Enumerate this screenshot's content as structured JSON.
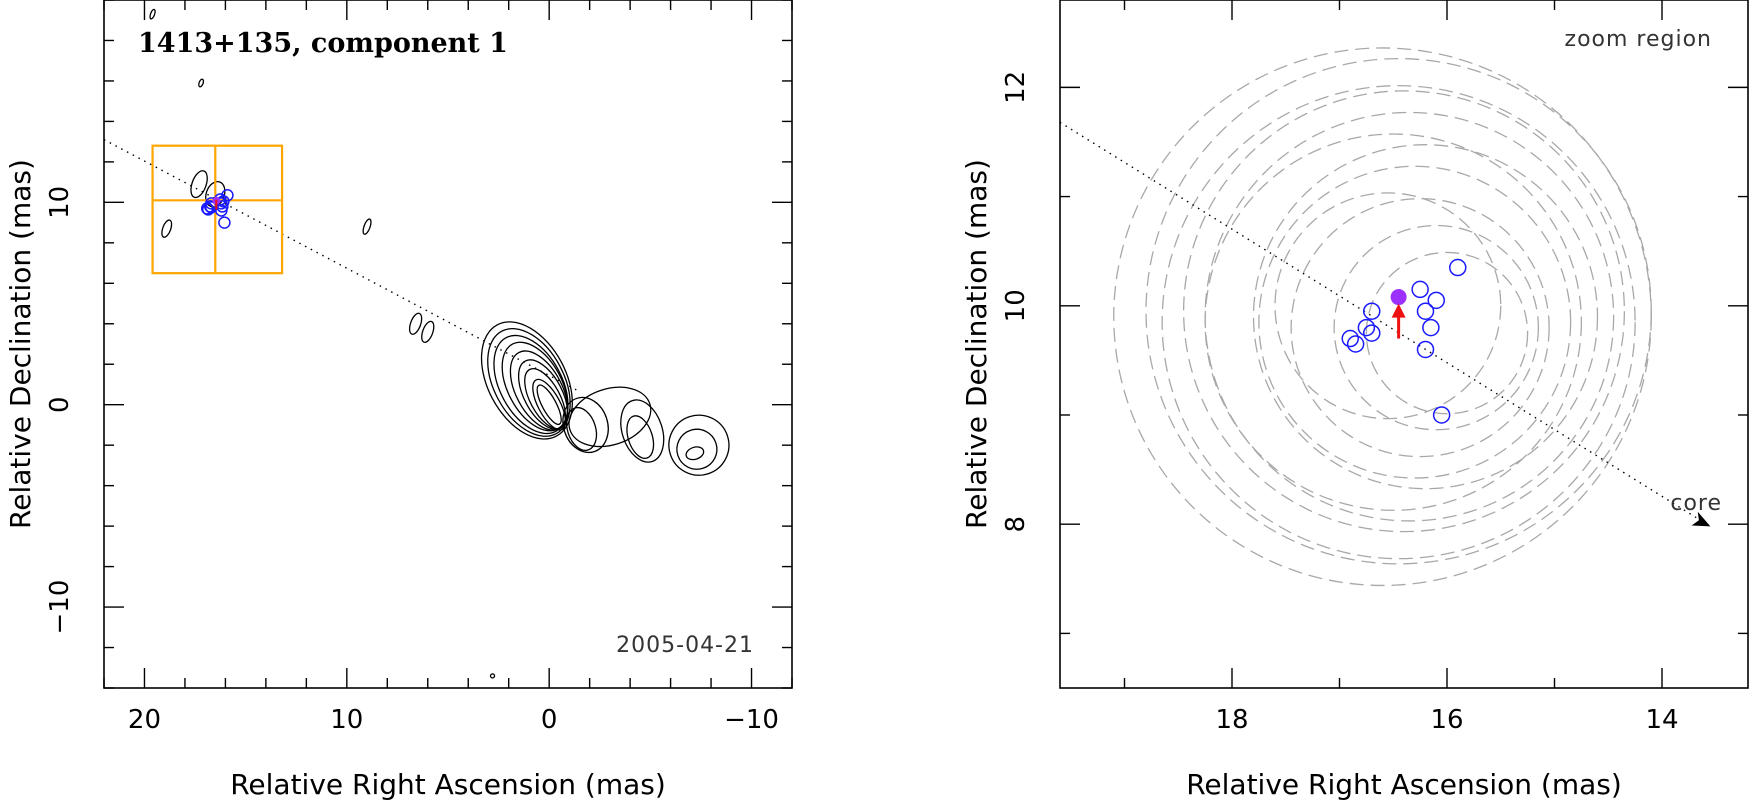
{
  "chart_data": [
    {
      "type": "scatter",
      "title": "1413+135, component 1",
      "annotation": "2005-04-21",
      "xlabel": "Relative Right Ascension (mas)",
      "ylabel": "Relative Declination (mas)",
      "xlim": [
        22,
        -12
      ],
      "ylim": [
        -14,
        20
      ],
      "xticks": [
        20,
        10,
        0,
        -10
      ],
      "xticklabels": [
        "20",
        "10",
        "0",
        "−10"
      ],
      "yticks": [
        -10,
        0,
        10
      ],
      "yticklabels": [
        "−10",
        "0",
        "10"
      ],
      "contour_map": true,
      "zoom_box": {
        "x": [
          13.2,
          19.6
        ],
        "y": [
          6.5,
          12.8
        ],
        "cross": [
          16.5,
          10.1
        ],
        "color": "#ffa500"
      },
      "component_positions": [
        [
          16.9,
          9.7
        ],
        [
          16.85,
          9.65
        ],
        [
          16.75,
          9.8
        ],
        [
          16.7,
          9.95
        ],
        [
          16.7,
          9.75
        ],
        [
          16.25,
          10.15
        ],
        [
          16.2,
          9.95
        ],
        [
          16.15,
          9.8
        ],
        [
          16.1,
          10.05
        ],
        [
          16.2,
          9.6
        ],
        [
          16.05,
          9.0
        ],
        [
          15.9,
          10.35
        ]
      ],
      "mean_position": [
        16.45,
        10.08
      ],
      "jet_axis": {
        "from": [
          22,
          13.1
        ],
        "to": [
          -1.5,
          0.65
        ],
        "style": "dotted"
      }
    },
    {
      "type": "scatter",
      "title": "",
      "annotation": "zoom region",
      "core_label": "core",
      "xlabel": "Relative Right Ascension (mas)",
      "ylabel": "Relative Declination (mas)",
      "xlim": [
        19.6,
        13.2
      ],
      "ylim": [
        6.5,
        12.8
      ],
      "xticks": [
        18,
        16,
        14
      ],
      "xticklabels": [
        "18",
        "16",
        "14"
      ],
      "yticks": [
        8,
        10,
        12
      ],
      "yticklabels": [
        "8",
        "10",
        "12"
      ],
      "points": [
        {
          "x": 16.9,
          "y": 9.7
        },
        {
          "x": 16.85,
          "y": 9.65
        },
        {
          "x": 16.75,
          "y": 9.8
        },
        {
          "x": 16.7,
          "y": 9.95
        },
        {
          "x": 16.7,
          "y": 9.75
        },
        {
          "x": 16.25,
          "y": 10.15
        },
        {
          "x": 16.2,
          "y": 9.95
        },
        {
          "x": 16.15,
          "y": 9.8
        },
        {
          "x": 16.1,
          "y": 10.05
        },
        {
          "x": 16.2,
          "y": 9.6
        },
        {
          "x": 16.05,
          "y": 9.0
        },
        {
          "x": 15.9,
          "y": 10.35
        }
      ],
      "mean_position": {
        "x": 16.45,
        "y": 10.08,
        "color": "#9b30ff"
      },
      "error_circles": [
        {
          "cx": 16.45,
          "cy": 9.95,
          "r": 2.35
        },
        {
          "cx": 16.4,
          "cy": 9.95,
          "r": 2.05
        },
        {
          "cx": 16.5,
          "cy": 9.85,
          "r": 1.75
        },
        {
          "cx": 16.3,
          "cy": 9.85,
          "r": 1.45
        },
        {
          "cx": 16.25,
          "cy": 9.8,
          "r": 1.2
        },
        {
          "cx": 16.1,
          "cy": 9.8,
          "r": 0.95
        },
        {
          "cx": 16.0,
          "cy": 9.75,
          "r": 0.75
        },
        {
          "cx": 16.55,
          "cy": 10.0,
          "r": 1.05
        },
        {
          "cx": 16.2,
          "cy": 9.9,
          "r": 1.6
        },
        {
          "cx": 16.35,
          "cy": 9.9,
          "r": 1.9
        },
        {
          "cx": 16.45,
          "cy": 9.85,
          "r": 2.2
        },
        {
          "cx": 16.6,
          "cy": 9.9,
          "r": 2.5
        }
      ],
      "arrow": {
        "from": [
          16.45,
          9.7
        ],
        "to": [
          16.45,
          10.02
        ],
        "color": "#ee1111"
      },
      "jet_axis": {
        "from": [
          19.6,
          11.68
        ],
        "to": [
          13.55,
          7.98
        ],
        "style": "dotted"
      }
    }
  ]
}
